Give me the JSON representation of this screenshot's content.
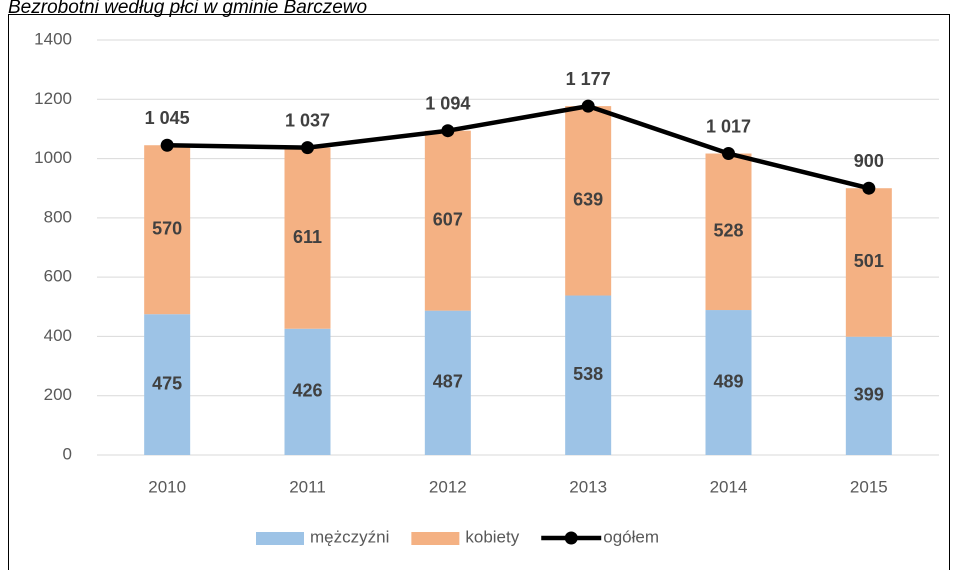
{
  "chart_data": {
    "type": "bar",
    "stacked": true,
    "title": "Bezrobotni według płci w gminie Barczewo",
    "categories": [
      "2010",
      "2011",
      "2012",
      "2013",
      "2014",
      "2015"
    ],
    "series": [
      {
        "name": "mężczyźni",
        "type": "bar",
        "color": "#9dc3e6",
        "values": [
          475,
          426,
          487,
          538,
          489,
          399
        ]
      },
      {
        "name": "kobiety",
        "type": "bar",
        "color": "#f4b183",
        "values": [
          570,
          611,
          607,
          639,
          528,
          501
        ]
      },
      {
        "name": "ogółem",
        "type": "line",
        "color": "#000000",
        "values": [
          1045,
          1037,
          1094,
          1177,
          1017,
          900
        ],
        "value_labels": [
          "1 045",
          "1 037",
          "1 094",
          "1 177",
          "1 017",
          "900"
        ]
      }
    ],
    "ylim": [
      0,
      1400
    ],
    "yticks": [
      0,
      200,
      400,
      600,
      800,
      1000,
      1200,
      1400
    ],
    "grid": true,
    "legend": "bottom"
  }
}
